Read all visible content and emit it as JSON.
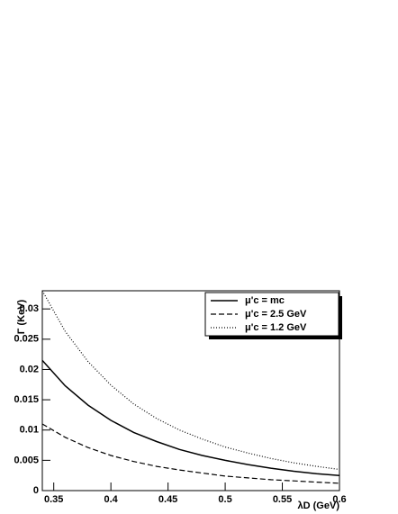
{
  "chart_data": {
    "type": "line",
    "y_label": "Γ (KeV)",
    "x_label": "λD (GeV)",
    "x": [
      0.34,
      0.36,
      0.38,
      0.4,
      0.42,
      0.44,
      0.46,
      0.48,
      0.5,
      0.52,
      0.54,
      0.56,
      0.58,
      0.6
    ],
    "series": [
      {
        "name": "μ'c = mc",
        "color": "#000000",
        "dash": "solid",
        "values": [
          0.0215,
          0.0173,
          0.0141,
          0.0116,
          0.0096,
          0.0081,
          0.0068,
          0.0058,
          0.005,
          0.0043,
          0.0037,
          0.0032,
          0.0028,
          0.0025
        ]
      },
      {
        "name": "μ'c = 2.5 GeV",
        "color": "#000000",
        "dash": "dashed",
        "values": [
          0.011,
          0.0088,
          0.0071,
          0.0058,
          0.0048,
          0.004,
          0.0034,
          0.0029,
          0.0024,
          0.0021,
          0.0018,
          0.0016,
          0.0014,
          0.0012
        ]
      },
      {
        "name": "μ'c = 1.2 GeV",
        "color": "#000000",
        "dash": "dotted",
        "values": [
          0.033,
          0.0263,
          0.0213,
          0.0174,
          0.0143,
          0.0119,
          0.01,
          0.0085,
          0.0072,
          0.0062,
          0.0053,
          0.0046,
          0.004,
          0.0035
        ]
      }
    ],
    "xlim": [
      0.34,
      0.6
    ],
    "xticks": [
      0.35,
      0.4,
      0.45,
      0.5,
      0.55,
      0.6
    ],
    "ylim": [
      0,
      0.033
    ],
    "yticks": [
      0,
      0.005,
      0.01,
      0.015,
      0.02,
      0.025,
      0.03
    ],
    "legend": "top-right",
    "grid": false
  }
}
